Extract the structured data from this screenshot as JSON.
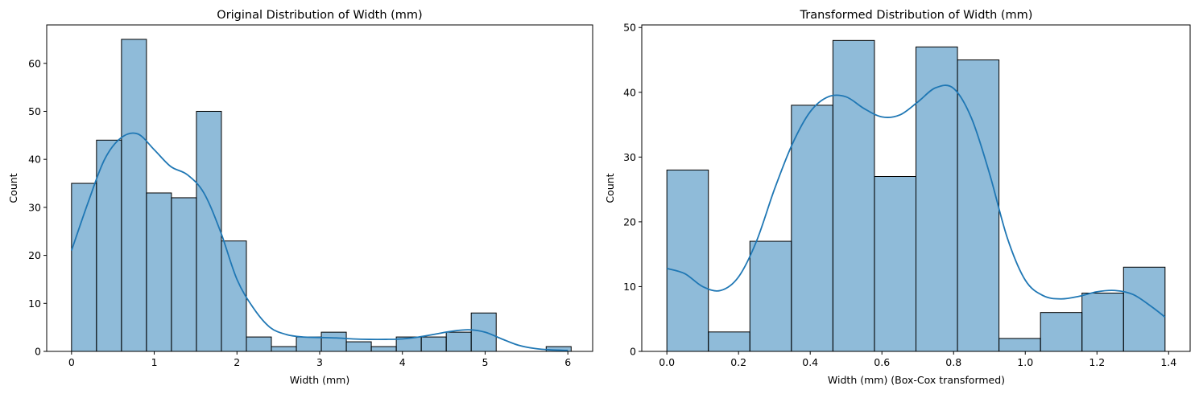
{
  "chart_data": [
    {
      "type": "bar",
      "subtype": "histogram",
      "title": "Original Distribution of Width (mm)",
      "xlabel": "Width (mm)",
      "ylabel": "Count",
      "xlim": [
        -0.3,
        6.3
      ],
      "ylim": [
        0,
        68
      ],
      "xticks": [
        0,
        1,
        2,
        3,
        4,
        5,
        6
      ],
      "yticks": [
        0,
        10,
        20,
        30,
        40,
        50,
        60
      ],
      "bin_start": 0.0,
      "bin_width": 0.302,
      "counts": [
        35,
        44,
        65,
        33,
        32,
        50,
        23,
        3,
        1,
        3,
        4,
        2,
        1,
        3,
        3,
        4,
        8,
        0,
        0,
        1
      ],
      "kde": {
        "x": [
          0,
          0.2,
          0.4,
          0.6,
          0.8,
          1.0,
          1.2,
          1.4,
          1.6,
          1.8,
          2.0,
          2.2,
          2.4,
          2.6,
          2.8,
          3.0,
          3.2,
          3.4,
          3.6,
          3.8,
          4.0,
          4.2,
          4.4,
          4.6,
          4.8,
          5.0,
          5.2,
          5.4,
          5.6,
          5.8,
          6.0
        ],
        "y": [
          21,
          31,
          40,
          44.5,
          45.3,
          42,
          38.5,
          36.8,
          33,
          25,
          15,
          9,
          5,
          3.5,
          3,
          2.9,
          2.8,
          2.6,
          2.5,
          2.5,
          2.6,
          3.0,
          3.6,
          4.2,
          4.5,
          4.0,
          2.6,
          1.3,
          0.6,
          0.3,
          0.2
        ]
      },
      "color": "#1f77b4"
    },
    {
      "type": "bar",
      "subtype": "histogram",
      "title": "Transformed Distribution of Width (mm)",
      "xlabel": "Width (mm) (Box-Cox transformed)",
      "ylabel": "Count",
      "xlim": [
        -0.07,
        1.46
      ],
      "ylim": [
        0,
        50.4
      ],
      "xticks": [
        0.0,
        0.2,
        0.4,
        0.6,
        0.8,
        1.0,
        1.2,
        1.4
      ],
      "xtick_labels": [
        "0.0",
        "0.2",
        "0.4",
        "0.6",
        "0.8",
        "1.0",
        "1.2",
        "1.4"
      ],
      "yticks": [
        0,
        10,
        20,
        30,
        40,
        50
      ],
      "bin_start": 0.0,
      "bin_width": 0.11583,
      "counts": [
        28,
        3,
        17,
        38,
        48,
        27,
        47,
        45,
        2,
        6,
        9,
        13
      ],
      "kde": {
        "x": [
          0,
          0.05,
          0.1,
          0.15,
          0.2,
          0.25,
          0.3,
          0.35,
          0.4,
          0.45,
          0.5,
          0.55,
          0.6,
          0.65,
          0.7,
          0.75,
          0.8,
          0.85,
          0.9,
          0.95,
          1.0,
          1.05,
          1.1,
          1.15,
          1.2,
          1.25,
          1.3,
          1.35,
          1.39
        ],
        "y": [
          12.8,
          12,
          10,
          9.4,
          11.5,
          17,
          25,
          32,
          37,
          39.3,
          39.3,
          37.5,
          36.2,
          36.5,
          38.5,
          40.7,
          40.6,
          36,
          27.5,
          17.5,
          11,
          8.6,
          8.1,
          8.5,
          9.2,
          9.4,
          8.8,
          7.0,
          5.3
        ]
      },
      "color": "#1f77b4"
    }
  ]
}
